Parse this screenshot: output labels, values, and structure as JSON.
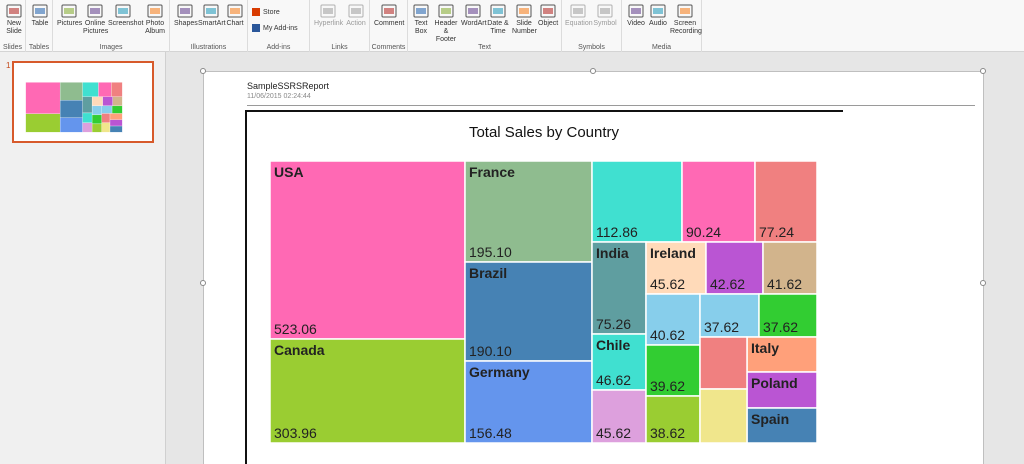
{
  "ribbon": {
    "groups": [
      {
        "label": "Slides",
        "buttons": [
          {
            "label": "New Slide",
            "icon": "new-slide-icon"
          }
        ]
      },
      {
        "label": "Tables",
        "buttons": [
          {
            "label": "Table",
            "icon": "table-icon"
          }
        ]
      },
      {
        "label": "Images",
        "buttons": [
          {
            "label": "Pictures",
            "icon": "pictures-icon"
          },
          {
            "label": "Online Pictures",
            "icon": "online-pictures-icon"
          },
          {
            "label": "Screenshot",
            "icon": "screenshot-icon"
          },
          {
            "label": "Photo Album",
            "icon": "photo-album-icon"
          }
        ]
      },
      {
        "label": "Illustrations",
        "buttons": [
          {
            "label": "Shapes",
            "icon": "shapes-icon"
          },
          {
            "label": "SmartArt",
            "icon": "smartart-icon"
          },
          {
            "label": "Chart",
            "icon": "chart-icon"
          }
        ]
      },
      {
        "label": "Add-ins",
        "buttons": [
          {
            "label": "Store",
            "icon": "store-icon"
          },
          {
            "label": "My Add-ins",
            "icon": "my-addins-icon"
          }
        ]
      },
      {
        "label": "Links",
        "buttons": [
          {
            "label": "Hyperlink",
            "icon": "hyperlink-icon"
          },
          {
            "label": "Action",
            "icon": "action-icon"
          }
        ]
      },
      {
        "label": "Comments",
        "buttons": [
          {
            "label": "Comment",
            "icon": "comment-icon"
          }
        ]
      },
      {
        "label": "Text",
        "buttons": [
          {
            "label": "Text Box",
            "icon": "text-box-icon"
          },
          {
            "label": "Header & Footer",
            "icon": "header-footer-icon"
          },
          {
            "label": "WordArt",
            "icon": "wordart-icon"
          },
          {
            "label": "Date & Time",
            "icon": "date-time-icon"
          },
          {
            "label": "Slide Number",
            "icon": "slide-number-icon"
          },
          {
            "label": "Object",
            "icon": "object-icon"
          }
        ]
      },
      {
        "label": "Symbols",
        "buttons": [
          {
            "label": "Equation",
            "icon": "equation-icon"
          },
          {
            "label": "Symbol",
            "icon": "symbol-icon"
          }
        ]
      },
      {
        "label": "Media",
        "buttons": [
          {
            "label": "Video",
            "icon": "video-icon"
          },
          {
            "label": "Audio",
            "icon": "audio-icon"
          },
          {
            "label": "Screen Recording",
            "icon": "screen-recording-icon"
          }
        ]
      }
    ]
  },
  "thumbnails": {
    "slide_number": "1"
  },
  "slide": {
    "report_name": "SampleSSRSReport",
    "report_date": "11/06/2015 02:24:44"
  },
  "chart_data": {
    "type": "treemap",
    "title": "Total Sales by Country",
    "items": [
      {
        "label": "USA",
        "value": 523.06,
        "color": "#ff69b4"
      },
      {
        "label": "Canada",
        "value": 303.96,
        "color": "#9acd32"
      },
      {
        "label": "France",
        "value": 195.1,
        "color": "#8fbc8f"
      },
      {
        "label": "Brazil",
        "value": 190.1,
        "color": "#4682b4"
      },
      {
        "label": "Germany",
        "value": 156.48,
        "color": "#6495ed"
      },
      {
        "label": "",
        "value": 112.86,
        "color": "#40e0d0"
      },
      {
        "label": "",
        "value": 90.24,
        "color": "#ff69b4"
      },
      {
        "label": "",
        "value": 77.24,
        "color": "#f08080"
      },
      {
        "label": "India",
        "value": 75.26,
        "color": "#5f9ea0"
      },
      {
        "label": "Chile",
        "value": 46.62,
        "color": "#40e0d0"
      },
      {
        "label": "",
        "value": 45.62,
        "color": "#dda0dd"
      },
      {
        "label": "Ireland",
        "value": 45.62,
        "color": "#ffdab9"
      },
      {
        "label": "",
        "value": 42.62,
        "color": "#ba55d3"
      },
      {
        "label": "",
        "value": 41.62,
        "color": "#d2b48c"
      },
      {
        "label": "",
        "value": 40.62,
        "color": "#87ceeb"
      },
      {
        "label": "",
        "value": 37.62,
        "color": "#87ceeb"
      },
      {
        "label": "",
        "value": 37.62,
        "color": "#32cd32"
      },
      {
        "label": "",
        "value": 39.62,
        "color": "#32cd32"
      },
      {
        "label": "",
        "value": 38.62,
        "color": "#9acd32"
      },
      {
        "label": "Italy",
        "value": null,
        "color": "#ffa07a"
      },
      {
        "label": "Poland",
        "value": null,
        "color": "#ba55d3"
      },
      {
        "label": "Spain",
        "value": null,
        "color": "#4682b4"
      },
      {
        "label": "",
        "value": null,
        "color": "#f08080"
      },
      {
        "label": "",
        "value": null,
        "color": "#f0e68c"
      }
    ]
  }
}
